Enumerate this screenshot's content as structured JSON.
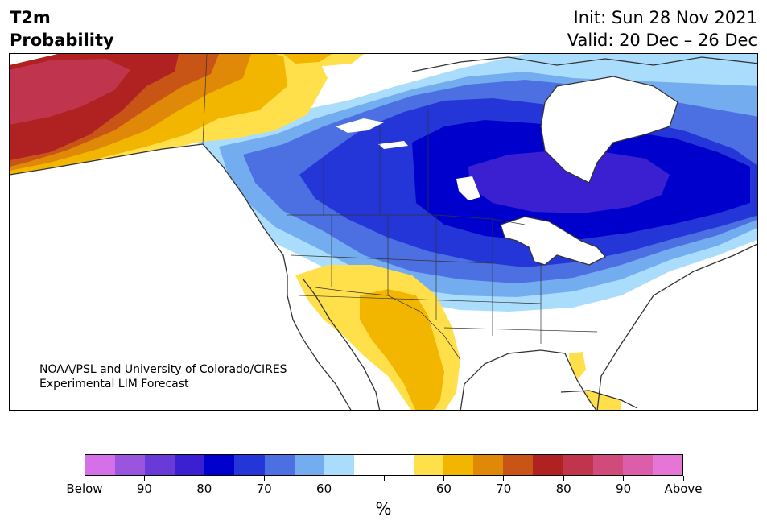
{
  "title": {
    "line1": "T2m",
    "line2": "Probability"
  },
  "header_right": {
    "init": "Init: Sun 28 Nov 2021",
    "valid": "Valid: 20 Dec – 26 Dec"
  },
  "credit": {
    "line1": "NOAA/PSL and University of Colorado/CIRES",
    "line2": "Experimental LIM Forecast"
  },
  "colorbar": {
    "colors": [
      "#d670e8",
      "#9b54de",
      "#6a3ad8",
      "#3a20d0",
      "#0000cc",
      "#2436d8",
      "#4c70e2",
      "#74acf0",
      "#aadcfc",
      "#ffffff",
      "#ffffff",
      "#ffe04a",
      "#f2b600",
      "#e08808",
      "#c85416",
      "#b02222",
      "#c0344e",
      "#d04a7c",
      "#dc5eaa",
      "#e676d6"
    ],
    "tick_labels": [
      "Below",
      "90",
      "80",
      "70",
      "60",
      "",
      "60",
      "70",
      "80",
      "90",
      "Above"
    ],
    "unit": "%"
  },
  "map": {
    "below_colors": {
      "p60": "#aadcfc",
      "p65": "#74acf0",
      "p70": "#4c70e2",
      "p75": "#2436d8",
      "p80": "#0000cc",
      "p85": "#3a20d0"
    },
    "above_colors": {
      "p60": "#ffe04a",
      "p65": "#f2b600",
      "p70": "#e08808",
      "p75": "#c85416",
      "p80": "#b02222",
      "p85": "#c0344e"
    },
    "ocean": "#ffffff",
    "coast": "#333333"
  }
}
